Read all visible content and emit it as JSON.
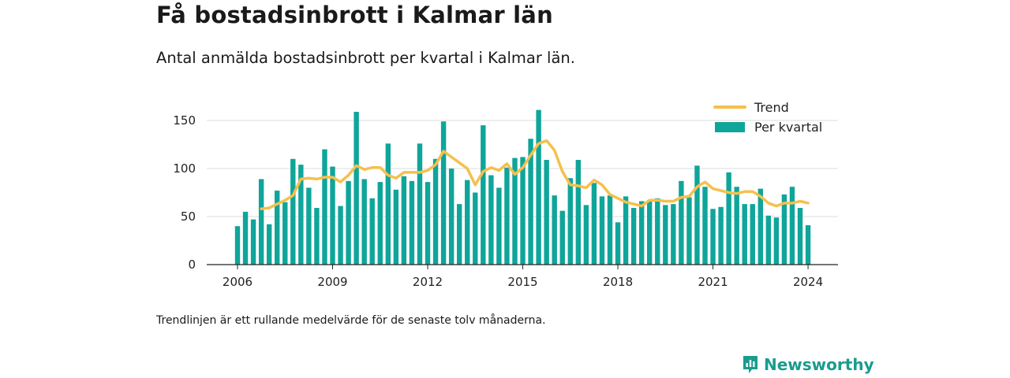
{
  "title": "Få bostadsinbrott i Kalmar län",
  "subtitle": "Antal anmälda bostadsinbrott per kvartal i Kalmar län.",
  "footnote": "Trendlinjen är ett rullande medelvärde för de senaste tolv månaderna.",
  "brand": "Newsworthy",
  "colors": {
    "bars": "#0fa59a",
    "trend": "#f5c04d",
    "brand": "#199c8e"
  },
  "chart_data": {
    "type": "bar",
    "x_start": 2006,
    "quarters_per_year": 4,
    "x_ticks": [
      "2006",
      "2009",
      "2012",
      "2015",
      "2018",
      "2021",
      "2024"
    ],
    "y_ticks": [
      "0",
      "50",
      "100",
      "150"
    ],
    "ylim": [
      0,
      170
    ],
    "grid": true,
    "legend_position": "top-right",
    "series": [
      {
        "name": "Per kvartal",
        "type": "bar",
        "values": [
          40,
          55,
          47,
          89,
          42,
          77,
          65,
          110,
          104,
          80,
          59,
          120,
          102,
          61,
          87,
          159,
          89,
          69,
          86,
          126,
          78,
          92,
          87,
          126,
          86,
          110,
          149,
          100,
          63,
          88,
          75,
          145,
          93,
          80,
          101,
          111,
          112,
          131,
          161,
          109,
          72,
          56,
          90,
          109,
          62,
          85,
          71,
          72,
          44,
          71,
          59,
          66,
          67,
          69,
          62,
          63,
          87,
          70,
          103,
          81,
          58,
          60,
          96,
          81,
          63,
          63,
          79,
          51,
          49,
          73,
          81,
          59,
          41
        ]
      },
      {
        "name": "Trend",
        "type": "line",
        "start_index": 3,
        "values": [
          58,
          59,
          63,
          67,
          72,
          89,
          90,
          89,
          91,
          91,
          86,
          93,
          103,
          99,
          101,
          101,
          93,
          90,
          96,
          96,
          96,
          98,
          104,
          118,
          112,
          106,
          100,
          83,
          97,
          101,
          98,
          105,
          94,
          101,
          114,
          126,
          129,
          119,
          97,
          83,
          82,
          80,
          88,
          83,
          73,
          69,
          65,
          63,
          61,
          67,
          67,
          66,
          66,
          70,
          71,
          81,
          86,
          79,
          77,
          75,
          74,
          76,
          76,
          71,
          64,
          61,
          64,
          64,
          66,
          64
        ]
      }
    ]
  }
}
